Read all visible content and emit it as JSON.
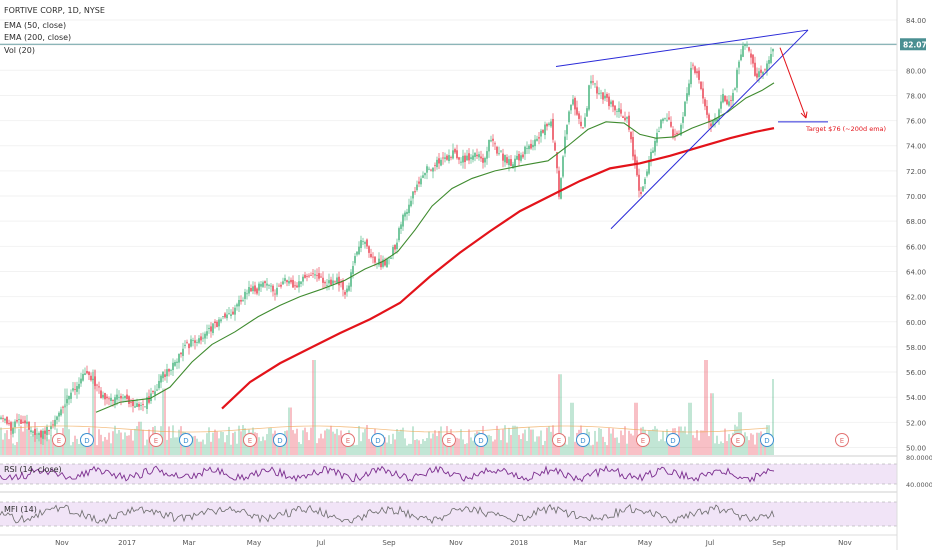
{
  "legend": {
    "title": "FORTIVE CORP, 1D, NYSE",
    "ema50": "EMA (50, close)",
    "ema200": "EMA (200, close)",
    "vol": "Vol (20)",
    "rsi": "RSI (14, close)",
    "mfi": "MFI (14)"
  },
  "colors": {
    "up": "#53b987",
    "down": "#eb4d5c",
    "ema50": "#3f8b2f",
    "ema200": "#e3131a",
    "trendline": "#2a2ad8",
    "target": "#e3131a",
    "indicator_fill": "#f1e4f7",
    "indicator_line": "#7b2d8e",
    "mfi_line": "#6b6b6b",
    "last_price_bg": "#4a8f92",
    "event_earnings": "#e27171",
    "event_dividend": "#3c8fd2"
  },
  "chart_data": {
    "type": "candlestick",
    "symbol": "FORTIVE CORP",
    "interval": "1D",
    "exchange": "NYSE",
    "x_ticks": [
      "Nov",
      "2017",
      "Mar",
      "May",
      "Jul",
      "Sep",
      "Nov",
      "2018",
      "Mar",
      "May",
      "Jul",
      "Sep",
      "Nov"
    ],
    "y_ticks": [
      "84.00",
      "82.00",
      "80.00",
      "78.00",
      "76.00",
      "74.00",
      "72.00",
      "70.00",
      "68.00",
      "66.00",
      "64.00",
      "62.00",
      "60.00",
      "58.00",
      "56.00",
      "54.00",
      "52.00",
      "50.00"
    ],
    "ylim": [
      49.5,
      85
    ],
    "last_price": "82.07",
    "price_path": [
      [
        0,
        52.5
      ],
      [
        12,
        51.6
      ],
      [
        22,
        52.1
      ],
      [
        32,
        51.4
      ],
      [
        42,
        51.0
      ],
      [
        55,
        52.2
      ],
      [
        65,
        53.5
      ],
      [
        75,
        54.6
      ],
      [
        85,
        55.8
      ],
      [
        92,
        55.4
      ],
      [
        100,
        54.3
      ],
      [
        110,
        53.9
      ],
      [
        120,
        54.1
      ],
      [
        132,
        53.6
      ],
      [
        145,
        53.5
      ],
      [
        155,
        54.5
      ],
      [
        162,
        55.6
      ],
      [
        170,
        56.3
      ],
      [
        178,
        57.2
      ],
      [
        188,
        58.2
      ],
      [
        198,
        58.6
      ],
      [
        208,
        59.3
      ],
      [
        220,
        60.0
      ],
      [
        232,
        60.6
      ],
      [
        240,
        61.5
      ],
      [
        248,
        62.6
      ],
      [
        256,
        62.5
      ],
      [
        266,
        63.2
      ],
      [
        276,
        62.4
      ],
      [
        286,
        63.4
      ],
      [
        296,
        62.9
      ],
      [
        306,
        63.8
      ],
      [
        316,
        63.6
      ],
      [
        326,
        63.1
      ],
      [
        336,
        63.4
      ],
      [
        346,
        62.2
      ],
      [
        352,
        64.0
      ],
      [
        358,
        66.2
      ],
      [
        365,
        66.6
      ],
      [
        372,
        65.2
      ],
      [
        380,
        64.6
      ],
      [
        388,
        64.8
      ],
      [
        396,
        66.2
      ],
      [
        404,
        68.6
      ],
      [
        412,
        69.9
      ],
      [
        420,
        71.2
      ],
      [
        428,
        72.3
      ],
      [
        436,
        72.6
      ],
      [
        444,
        72.8
      ],
      [
        454,
        73.4
      ],
      [
        464,
        72.8
      ],
      [
        474,
        73.3
      ],
      [
        484,
        72.8
      ],
      [
        490,
        74.8
      ],
      [
        496,
        73.7
      ],
      [
        504,
        73.0
      ],
      [
        514,
        72.6
      ],
      [
        524,
        73.5
      ],
      [
        534,
        74.3
      ],
      [
        544,
        75.3
      ],
      [
        551,
        75.8
      ],
      [
        556,
        73.2
      ],
      [
        559,
        69.8
      ],
      [
        565,
        74.8
      ],
      [
        572,
        77.6
      ],
      [
        578,
        76.5
      ],
      [
        584,
        75.3
      ],
      [
        590,
        79.3
      ],
      [
        596,
        78.6
      ],
      [
        604,
        77.8
      ],
      [
        612,
        77.2
      ],
      [
        620,
        76.9
      ],
      [
        628,
        75.8
      ],
      [
        634,
        73.0
      ],
      [
        640,
        70.3
      ],
      [
        646,
        71.5
      ],
      [
        652,
        73.5
      ],
      [
        660,
        75.7
      ],
      [
        666,
        76.6
      ],
      [
        674,
        74.5
      ],
      [
        680,
        74.9
      ],
      [
        686,
        77.8
      ],
      [
        692,
        80.7
      ],
      [
        698,
        79.3
      ],
      [
        704,
        77.3
      ],
      [
        710,
        75.5
      ],
      [
        716,
        76.0
      ],
      [
        722,
        78.2
      ],
      [
        728,
        77.3
      ],
      [
        734,
        78.4
      ],
      [
        740,
        81.0
      ],
      [
        744,
        82.3
      ],
      [
        750,
        81.0
      ],
      [
        756,
        79.4
      ],
      [
        762,
        79.8
      ],
      [
        768,
        80.8
      ],
      [
        774,
        82.2
      ]
    ],
    "ema50_path": [
      [
        96,
        52.8
      ],
      [
        120,
        53.6
      ],
      [
        150,
        53.9
      ],
      [
        170,
        54.8
      ],
      [
        192,
        56.8
      ],
      [
        212,
        58.2
      ],
      [
        235,
        59.2
      ],
      [
        258,
        60.4
      ],
      [
        280,
        61.3
      ],
      [
        300,
        62.0
      ],
      [
        322,
        62.6
      ],
      [
        345,
        63.3
      ],
      [
        365,
        64.2
      ],
      [
        383,
        64.8
      ],
      [
        398,
        65.6
      ],
      [
        415,
        67.3
      ],
      [
        432,
        69.2
      ],
      [
        452,
        70.6
      ],
      [
        472,
        71.4
      ],
      [
        495,
        72.0
      ],
      [
        520,
        72.4
      ],
      [
        548,
        72.8
      ],
      [
        568,
        74.0
      ],
      [
        588,
        75.3
      ],
      [
        606,
        75.9
      ],
      [
        624,
        75.8
      ],
      [
        640,
        74.9
      ],
      [
        656,
        74.6
      ],
      [
        674,
        74.7
      ],
      [
        692,
        75.4
      ],
      [
        712,
        76.0
      ],
      [
        728,
        76.7
      ],
      [
        746,
        77.8
      ],
      [
        762,
        78.4
      ],
      [
        774,
        79.0
      ]
    ],
    "ema200_path": [
      [
        222,
        53.1
      ],
      [
        250,
        55.2
      ],
      [
        280,
        56.7
      ],
      [
        310,
        57.9
      ],
      [
        340,
        59.1
      ],
      [
        370,
        60.2
      ],
      [
        400,
        61.5
      ],
      [
        430,
        63.6
      ],
      [
        460,
        65.5
      ],
      [
        490,
        67.2
      ],
      [
        520,
        68.8
      ],
      [
        550,
        70.0
      ],
      [
        580,
        71.2
      ],
      [
        610,
        72.2
      ],
      [
        640,
        72.6
      ],
      [
        670,
        73.2
      ],
      [
        700,
        73.9
      ],
      [
        730,
        74.6
      ],
      [
        755,
        75.1
      ],
      [
        774,
        75.4
      ]
    ],
    "trendlines": [
      {
        "from": [
          556,
          80.3
        ],
        "to": [
          808,
          83.2
        ]
      },
      {
        "from": [
          611,
          67.4
        ],
        "to": [
          808,
          83.2
        ]
      },
      {
        "from": [
          778,
          75.9
        ],
        "to": [
          828,
          75.9
        ]
      }
    ],
    "target_arrow": {
      "from": [
        780,
        81.8
      ],
      "to": [
        806,
        76.2
      ]
    },
    "annotation": "Target $76 (~200d ema)",
    "volume_spikes": [
      [
        66,
        0.7
      ],
      [
        94,
        0.9
      ],
      [
        140,
        0.35
      ],
      [
        164,
        0.7
      ],
      [
        290,
        0.5
      ],
      [
        314,
        1.0
      ],
      [
        560,
        0.85
      ],
      [
        572,
        0.55
      ],
      [
        636,
        0.55
      ],
      [
        690,
        0.55
      ],
      [
        706,
        1.0
      ],
      [
        712,
        0.65
      ],
      [
        740,
        0.45
      ],
      [
        774,
        0.8
      ]
    ],
    "events": [
      {
        "label": "E",
        "kind": "earnings",
        "x": 59
      },
      {
        "label": "D",
        "kind": "dividend",
        "x": 87
      },
      {
        "label": "E",
        "kind": "earnings",
        "x": 156
      },
      {
        "label": "D",
        "kind": "dividend",
        "x": 186
      },
      {
        "label": "E",
        "kind": "earnings",
        "x": 250
      },
      {
        "label": "D",
        "kind": "dividend",
        "x": 280
      },
      {
        "label": "E",
        "kind": "earnings",
        "x": 348
      },
      {
        "label": "D",
        "kind": "dividend",
        "x": 378
      },
      {
        "label": "E",
        "kind": "earnings",
        "x": 449
      },
      {
        "label": "D",
        "kind": "dividend",
        "x": 481
      },
      {
        "label": "E",
        "kind": "earnings",
        "x": 559
      },
      {
        "label": "D",
        "kind": "dividend",
        "x": 583
      },
      {
        "label": "E",
        "kind": "earnings",
        "x": 643
      },
      {
        "label": "D",
        "kind": "dividend",
        "x": 673
      },
      {
        "label": "E",
        "kind": "earnings",
        "x": 738
      },
      {
        "label": "D",
        "kind": "dividend",
        "x": 767
      },
      {
        "label": "E",
        "kind": "earnings",
        "x": 842
      }
    ],
    "rsi": {
      "label": "RSI (14, close)",
      "ticks": [
        "80.0000",
        "40.0000"
      ],
      "range": [
        20,
        85
      ],
      "band": [
        30,
        70
      ]
    },
    "mfi": {
      "label": "MFI (14)",
      "range": [
        0,
        100
      ],
      "band": [
        20,
        80
      ]
    }
  }
}
